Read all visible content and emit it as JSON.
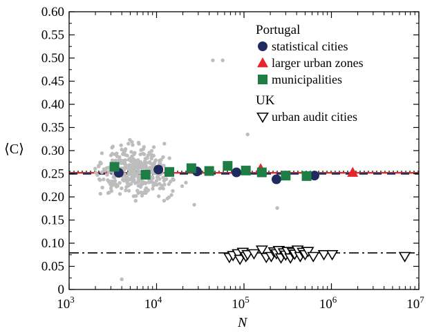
{
  "chart_data": {
    "type": "scatter",
    "x_scale": "log",
    "xlim": [
      1000,
      10000000
    ],
    "ylim": [
      0,
      0.6
    ],
    "xlabel": "N",
    "ylabel": "⟨C⟩",
    "x_ticks": [
      {
        "value": 1000,
        "base": "10",
        "exp": "3"
      },
      {
        "value": 10000,
        "base": "10",
        "exp": "4"
      },
      {
        "value": 100000,
        "base": "10",
        "exp": "5"
      },
      {
        "value": 1000000,
        "base": "10",
        "exp": "6"
      },
      {
        "value": 10000000,
        "base": "10",
        "exp": "7"
      }
    ],
    "y_ticks": [
      {
        "value": 0,
        "label": "0"
      },
      {
        "value": 0.05,
        "label": "0.05"
      },
      {
        "value": 0.1,
        "label": "0.10"
      },
      {
        "value": 0.15,
        "label": "0.15"
      },
      {
        "value": 0.2,
        "label": "0.20"
      },
      {
        "value": 0.25,
        "label": "0.25"
      },
      {
        "value": 0.3,
        "label": "0.30"
      },
      {
        "value": 0.35,
        "label": "0.35"
      },
      {
        "value": 0.4,
        "label": "0.40"
      },
      {
        "value": 0.45,
        "label": "0.45"
      },
      {
        "value": 0.5,
        "label": "0.50"
      },
      {
        "value": 0.55,
        "label": "0.55"
      },
      {
        "value": 0.6,
        "label": "0.60"
      }
    ],
    "legend": {
      "position": "top-right",
      "groups": [
        {
          "title": "Portugal",
          "entries": [
            {
              "series": "statistical cities",
              "marker": "circle",
              "color": "#1f2a5e"
            },
            {
              "series": "larger urban zones",
              "marker": "triangle-up",
              "color": "#e8252c"
            },
            {
              "series": "municipalities",
              "marker": "square",
              "color": "#1e7d45"
            }
          ]
        },
        {
          "title": "UK",
          "entries": [
            {
              "series": "urban audit cities",
              "marker": "triangle-down-open",
              "color": "#000000"
            }
          ]
        }
      ]
    },
    "reference_lines": [
      {
        "y": 0.255,
        "style": "dotted",
        "color": "#1e7d45"
      },
      {
        "y": 0.252,
        "style": "solid",
        "color": "#e8252c"
      },
      {
        "y": 0.25,
        "style": "dashed",
        "color": "#1f2a5e"
      },
      {
        "y": 0.079,
        "style": "dash-dot",
        "color": "#000000"
      }
    ],
    "series": [
      {
        "name": "statistical cities",
        "marker": "circle",
        "color": "#1f2a5e",
        "points": [
          [
            3700,
            0.252
          ],
          [
            10500,
            0.259
          ],
          [
            29000,
            0.255
          ],
          [
            82000,
            0.253
          ],
          [
            235000,
            0.238
          ],
          [
            640000,
            0.246
          ]
        ]
      },
      {
        "name": "larger urban zones",
        "marker": "triangle-up",
        "color": "#e8252c",
        "points": [
          [
            155000,
            0.261
          ],
          [
            1750000,
            0.253
          ]
        ]
      },
      {
        "name": "municipalities",
        "marker": "square",
        "color": "#1e7d45",
        "points": [
          [
            3300,
            0.265
          ],
          [
            7500,
            0.248
          ],
          [
            14000,
            0.254
          ],
          [
            25000,
            0.262
          ],
          [
            40000,
            0.256
          ],
          [
            65000,
            0.267
          ],
          [
            105000,
            0.257
          ],
          [
            160000,
            0.253
          ],
          [
            300000,
            0.246
          ],
          [
            520000,
            0.245
          ]
        ]
      },
      {
        "name": "urban audit cities",
        "marker": "triangle-down-open",
        "color": "#000000",
        "points": [
          [
            68000,
            0.07
          ],
          [
            75000,
            0.074
          ],
          [
            85000,
            0.078
          ],
          [
            90000,
            0.066
          ],
          [
            97000,
            0.081
          ],
          [
            105000,
            0.072
          ],
          [
            110000,
            0.076
          ],
          [
            130000,
            0.078
          ],
          [
            160000,
            0.086
          ],
          [
            180000,
            0.07
          ],
          [
            205000,
            0.072
          ],
          [
            220000,
            0.082
          ],
          [
            235000,
            0.078
          ],
          [
            250000,
            0.085
          ],
          [
            265000,
            0.069
          ],
          [
            285000,
            0.08
          ],
          [
            300000,
            0.075
          ],
          [
            315000,
            0.083
          ],
          [
            340000,
            0.069
          ],
          [
            360000,
            0.081
          ],
          [
            380000,
            0.077
          ],
          [
            410000,
            0.086
          ],
          [
            440000,
            0.072
          ],
          [
            470000,
            0.081
          ],
          [
            500000,
            0.076
          ],
          [
            540000,
            0.083
          ],
          [
            620000,
            0.072
          ],
          [
            820000,
            0.076
          ],
          [
            1020000,
            0.076
          ],
          [
            6900000,
            0.072
          ]
        ]
      }
    ],
    "background_points_color": "#bdbdbd"
  }
}
